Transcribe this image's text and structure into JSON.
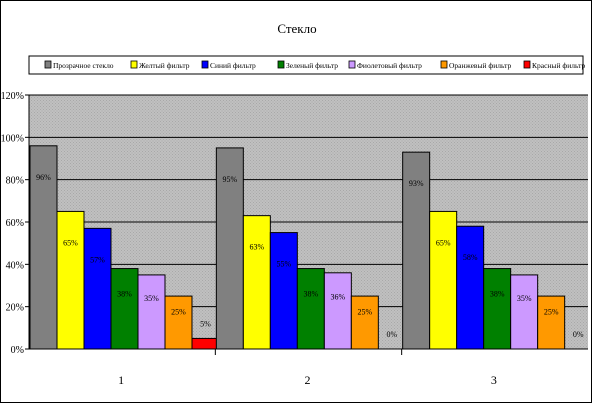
{
  "chart_data": {
    "type": "bar",
    "title": "Стекло",
    "xlabel": "",
    "ylabel": "",
    "categories": [
      "1",
      "2",
      "3"
    ],
    "ylim": [
      0,
      120
    ],
    "yticks": [
      0,
      20,
      40,
      60,
      80,
      100,
      120
    ],
    "ytick_labels": [
      "0%",
      "20%",
      "40%",
      "60%",
      "80%",
      "100%",
      "120%"
    ],
    "grid": true,
    "legend_position": "top",
    "series": [
      {
        "name": "Прозрачное стекло",
        "color": "#808080",
        "values": [
          96,
          95,
          93
        ],
        "labels": [
          "96%",
          "95%",
          "93%"
        ]
      },
      {
        "name": "Желтый фильтр",
        "color": "#ffff00",
        "values": [
          65,
          63,
          65
        ],
        "labels": [
          "65%",
          "63%",
          "65%"
        ]
      },
      {
        "name": "Синий фильтр",
        "color": "#0000ff",
        "values": [
          57,
          55,
          58
        ],
        "labels": [
          "57%",
          "55%",
          "58%"
        ]
      },
      {
        "name": "Зеленый фильтр",
        "color": "#008000",
        "values": [
          38,
          38,
          38
        ],
        "labels": [
          "38%",
          "38%",
          "38%"
        ]
      },
      {
        "name": "Фиолетовый фильтр",
        "color": "#cc99ff",
        "values": [
          35,
          36,
          35
        ],
        "labels": [
          "35%",
          "36%",
          "35%"
        ]
      },
      {
        "name": "Оранжевый фильтр",
        "color": "#ff9900",
        "values": [
          25,
          25,
          25
        ],
        "labels": [
          "25%",
          "25%",
          "25%"
        ]
      },
      {
        "name": "Красный фильтр",
        "color": "#ff0000",
        "values": [
          5,
          0,
          0
        ],
        "labels": [
          "5%",
          "0%",
          "0%"
        ]
      }
    ]
  }
}
